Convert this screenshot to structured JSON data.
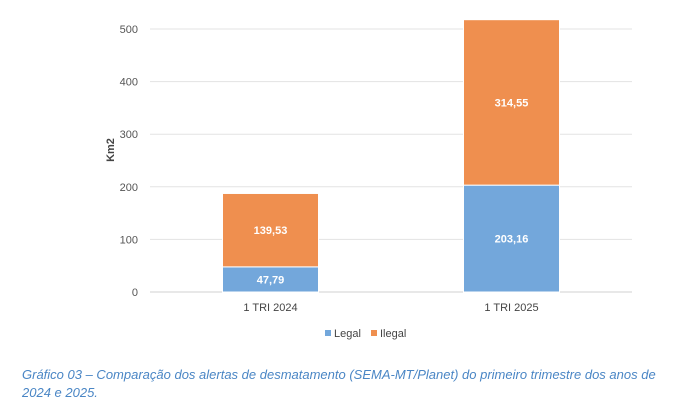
{
  "chart_data": {
    "type": "bar",
    "stacked": true,
    "categories": [
      "1 TRI 2024",
      "1 TRI 2025"
    ],
    "series": [
      {
        "name": "Legal",
        "values": [
          47.79,
          203.16
        ],
        "labels": [
          "47,79",
          "203,16"
        ],
        "color": "#73a7db"
      },
      {
        "name": "Ilegal",
        "values": [
          139.53,
          314.55
        ],
        "labels": [
          "139,53",
          "314,55"
        ],
        "color": "#ef8f4f"
      }
    ],
    "ylabel": "Km2",
    "ylim": [
      0,
      500
    ],
    "yticks": [
      0,
      100,
      200,
      300,
      400,
      500
    ],
    "grid": true,
    "legend": "bottom"
  },
  "caption": "Gráfico 03 – Comparação dos alertas de desmatamento (SEMA-MT/Planet) do primeiro trimestre dos anos de 2024 e 2025."
}
